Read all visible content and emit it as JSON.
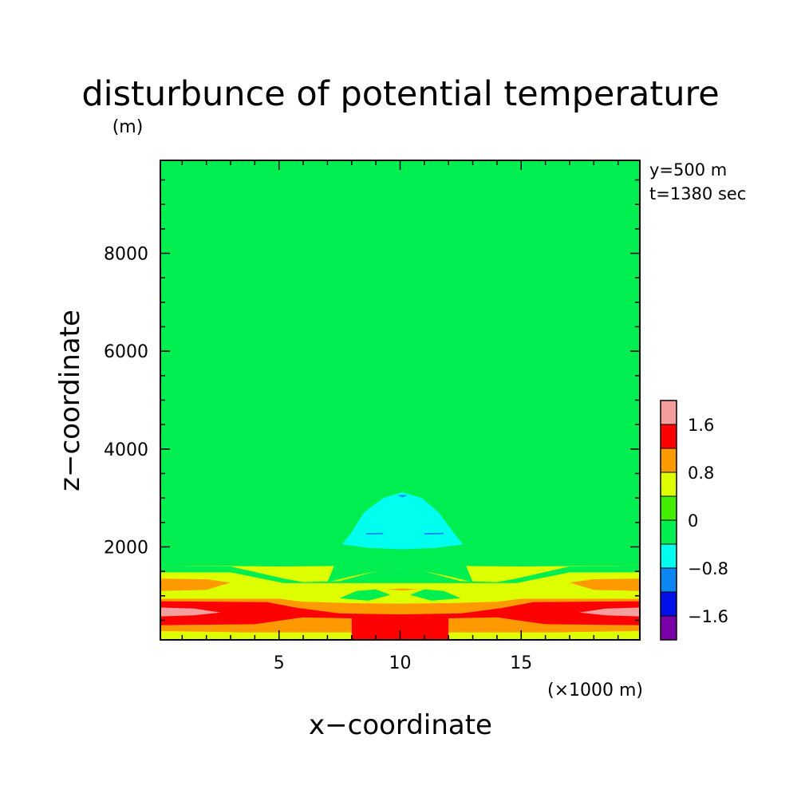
{
  "chart_data": {
    "type": "heatmap",
    "subtype": "filled-contour",
    "title": "disturbunce of potential temperature",
    "xlabel": "x−coordinate",
    "ylabel": "z−coordinate",
    "x_unit": "(×1000 m)",
    "y_unit": "(m)",
    "annotations": [
      "y=500 m",
      "t=1380 sec"
    ],
    "xlim": [
      0.1,
      19.9
    ],
    "ylim": [
      100,
      9900
    ],
    "x_ticks": [
      5,
      10,
      15
    ],
    "x_tick_labels": [
      "5",
      "10",
      "15"
    ],
    "y_ticks": [
      2000,
      4000,
      6000,
      8000
    ],
    "y_tick_labels": [
      "2000",
      "4000",
      "6000",
      "8000"
    ],
    "grid": false,
    "legend_position": "right",
    "colorbar": {
      "levels": [
        {
          "min": -2.0,
          "max": -1.6,
          "color": "#7a00a8"
        },
        {
          "min": -1.6,
          "max": -1.2,
          "color": "#0010e8"
        },
        {
          "min": -1.2,
          "max": -0.8,
          "color": "#0c86f0"
        },
        {
          "min": -0.8,
          "max": -0.4,
          "color": "#00ffee"
        },
        {
          "min": -0.4,
          "max": 0.0,
          "color": "#00ee50"
        },
        {
          "min": 0.0,
          "max": 0.4,
          "color": "#44ee00"
        },
        {
          "min": 0.4,
          "max": 0.8,
          "color": "#ddff00"
        },
        {
          "min": 0.8,
          "max": 1.2,
          "color": "#ff9900"
        },
        {
          "min": 1.2,
          "max": 1.6,
          "color": "#ff0000"
        },
        {
          "min": 1.6,
          "max": 2.0,
          "color": "#f59e9e"
        }
      ],
      "tick_values": [
        -1.6,
        -0.8,
        0,
        0.8,
        1.6
      ],
      "tick_labels": [
        "−1.6",
        "−0.8",
        "0",
        "0.8",
        "1.6"
      ]
    },
    "regions": [
      {
        "name": "upper-left weak negative lobe",
        "level": "-0.4..0",
        "points": [
          [
            0.1,
            8770
          ],
          [
            3.8,
            8770
          ],
          [
            4.3,
            8300
          ],
          [
            4.3,
            6000
          ],
          [
            3.7,
            5400
          ],
          [
            0.1,
            5400
          ]
        ]
      },
      {
        "name": "upper-right weak negative lobe",
        "level": "-0.4..0",
        "points": [
          [
            19.9,
            8770
          ],
          [
            16.2,
            8770
          ],
          [
            15.7,
            8300
          ],
          [
            15.7,
            6000
          ],
          [
            16.3,
            5400
          ],
          [
            19.9,
            5400
          ]
        ]
      },
      {
        "name": "central dome negative region",
        "level": "-0.4..0",
        "points": [
          [
            0.1,
            2000
          ],
          [
            2.0,
            2100
          ],
          [
            3.8,
            2400
          ],
          [
            5.5,
            3300
          ],
          [
            7.0,
            4300
          ],
          [
            8.6,
            5000
          ],
          [
            10.0,
            5200
          ],
          [
            11.4,
            5000
          ],
          [
            13.0,
            4300
          ],
          [
            14.5,
            3300
          ],
          [
            16.2,
            2400
          ],
          [
            18.0,
            2100
          ],
          [
            19.9,
            2000
          ],
          [
            19.9,
            1600
          ],
          [
            0.1,
            1600
          ]
        ]
      },
      {
        "name": "lower weak positive band",
        "level": "0.4..0.8",
        "points": [
          [
            0.1,
            1620
          ],
          [
            5.0,
            1600
          ],
          [
            10.0,
            1620
          ],
          [
            15.0,
            1600
          ],
          [
            19.9,
            1620
          ],
          [
            19.9,
            100
          ],
          [
            0.1,
            100
          ]
        ]
      },
      {
        "name": "inner negative region",
        "level": "-0.4..0",
        "points": [
          [
            7.0,
            1280
          ],
          [
            7.6,
            2000
          ],
          [
            8.6,
            2600
          ],
          [
            9.5,
            3100
          ],
          [
            10.5,
            3100
          ],
          [
            11.4,
            2600
          ],
          [
            12.4,
            2000
          ],
          [
            13.0,
            1280
          ],
          [
            12.0,
            1400
          ],
          [
            11.0,
            1500
          ],
          [
            10.0,
            1550
          ],
          [
            9.0,
            1500
          ],
          [
            8.0,
            1400
          ]
        ]
      },
      {
        "name": "lower weak negative region",
        "level": "-0.4..0",
        "points": [
          [
            0.1,
            1620
          ],
          [
            3.0,
            1600
          ],
          [
            5.2,
            1350
          ],
          [
            6.0,
            1280
          ],
          [
            7.5,
            1300
          ],
          [
            9.0,
            1500
          ],
          [
            10.0,
            1550
          ],
          [
            11.0,
            1500
          ],
          [
            12.5,
            1300
          ],
          [
            14.0,
            1280
          ],
          [
            14.8,
            1350
          ],
          [
            17.0,
            1600
          ],
          [
            19.9,
            1620
          ],
          [
            19.9,
            1480
          ],
          [
            17.0,
            1480
          ],
          [
            14.8,
            1260
          ],
          [
            5.2,
            1260
          ],
          [
            3.0,
            1480
          ],
          [
            0.1,
            1480
          ]
        ]
      },
      {
        "name": "cold core",
        "level": "-0.8..-0.4",
        "points": [
          [
            7.6,
            2050
          ],
          [
            8.0,
            2300
          ],
          [
            8.5,
            2700
          ],
          [
            9.3,
            3000
          ],
          [
            10.1,
            3120
          ],
          [
            10.9,
            3000
          ],
          [
            11.6,
            2700
          ],
          [
            12.2,
            2300
          ],
          [
            12.6,
            2050
          ],
          [
            11.5,
            1980
          ],
          [
            10.1,
            1950
          ],
          [
            8.7,
            1980
          ]
        ]
      },
      {
        "name": "left orange strip",
        "level": "0.8..1.2",
        "points": [
          [
            0.1,
            1350
          ],
          [
            2.0,
            1340
          ],
          [
            3.0,
            1270
          ],
          [
            2.0,
            1120
          ],
          [
            0.1,
            1100
          ]
        ]
      },
      {
        "name": "right orange strip",
        "level": "0.8..1.2",
        "points": [
          [
            19.9,
            1350
          ],
          [
            18.0,
            1340
          ],
          [
            17.0,
            1270
          ],
          [
            18.0,
            1120
          ],
          [
            19.9,
            1100
          ]
        ]
      },
      {
        "name": "center small positive",
        "level": "0.8..1.2",
        "points": [
          [
            9.4,
            1130
          ],
          [
            10.1,
            1150
          ],
          [
            10.8,
            1130
          ],
          [
            10.1,
            1110
          ]
        ]
      },
      {
        "name": "left green islands",
        "level": "-0.4..0",
        "points": [
          [
            7.5,
            950
          ],
          [
            8.2,
            1100
          ],
          [
            9.0,
            1130
          ],
          [
            9.6,
            1020
          ],
          [
            8.7,
            900
          ]
        ]
      },
      {
        "name": "right green islands",
        "level": "-0.4..0",
        "points": [
          [
            12.5,
            950
          ],
          [
            11.8,
            1100
          ],
          [
            11.0,
            1130
          ],
          [
            10.4,
            1020
          ],
          [
            11.3,
            900
          ]
        ]
      },
      {
        "name": "lower orange band",
        "level": "0.8..1.2",
        "points": [
          [
            0.1,
            940
          ],
          [
            5.0,
            940
          ],
          [
            6.0,
            880
          ],
          [
            8.0,
            850
          ],
          [
            10.0,
            840
          ],
          [
            12.0,
            850
          ],
          [
            14.0,
            880
          ],
          [
            15.0,
            940
          ],
          [
            19.9,
            940
          ],
          [
            19.9,
            250
          ],
          [
            0.1,
            250
          ]
        ]
      },
      {
        "name": "lower red band",
        "level": "1.2..1.6",
        "points": [
          [
            0.1,
            890
          ],
          [
            4.5,
            870
          ],
          [
            5.8,
            750
          ],
          [
            7.5,
            640
          ],
          [
            10.0,
            620
          ],
          [
            12.5,
            640
          ],
          [
            14.2,
            750
          ],
          [
            15.5,
            870
          ],
          [
            19.9,
            890
          ],
          [
            19.9,
            400
          ],
          [
            16.0,
            420
          ],
          [
            14.0,
            560
          ],
          [
            12.0,
            540
          ],
          [
            12.0,
            100
          ],
          [
            8.0,
            100
          ],
          [
            8.0,
            540
          ],
          [
            6.0,
            560
          ],
          [
            4.0,
            420
          ],
          [
            0.1,
            400
          ]
        ]
      },
      {
        "name": "left pink core",
        "level": "1.6..2.0",
        "points": [
          [
            0.1,
            760
          ],
          [
            1.5,
            740
          ],
          [
            2.6,
            660
          ],
          [
            1.5,
            600
          ],
          [
            0.1,
            580
          ]
        ]
      },
      {
        "name": "right pink core",
        "level": "1.6..2.0",
        "points": [
          [
            19.9,
            760
          ],
          [
            18.5,
            740
          ],
          [
            17.4,
            660
          ],
          [
            18.5,
            600
          ],
          [
            19.9,
            580
          ]
        ]
      },
      {
        "name": "bottom edge yellow strip",
        "level": "0.4..0.8",
        "points": [
          [
            0.1,
            280
          ],
          [
            3.0,
            260
          ],
          [
            5.5,
            180
          ],
          [
            6.5,
            100
          ],
          [
            0.1,
            100
          ]
        ]
      },
      {
        "name": "bottom right yellow strip",
        "level": "0.4..0.8",
        "points": [
          [
            19.9,
            280
          ],
          [
            17.0,
            260
          ],
          [
            14.5,
            180
          ],
          [
            13.5,
            100
          ],
          [
            19.9,
            100
          ]
        ]
      },
      {
        "name": "blue spots",
        "level": "-1.2..-0.8",
        "points": [
          [
            8.6,
            2280
          ],
          [
            9.3,
            2290
          ],
          [
            9.3,
            2260
          ],
          [
            8.6,
            2250
          ]
        ]
      },
      {
        "name": "blue spot right",
        "level": "-1.2..-0.8",
        "points": [
          [
            11.0,
            2280
          ],
          [
            11.8,
            2290
          ],
          [
            11.8,
            2260
          ],
          [
            11.0,
            2250
          ]
        ]
      },
      {
        "name": "blue spot top",
        "level": "-1.2..-0.8",
        "points": [
          [
            9.9,
            3060
          ],
          [
            10.3,
            3060
          ],
          [
            10.1,
            3010
          ]
        ]
      }
    ]
  }
}
